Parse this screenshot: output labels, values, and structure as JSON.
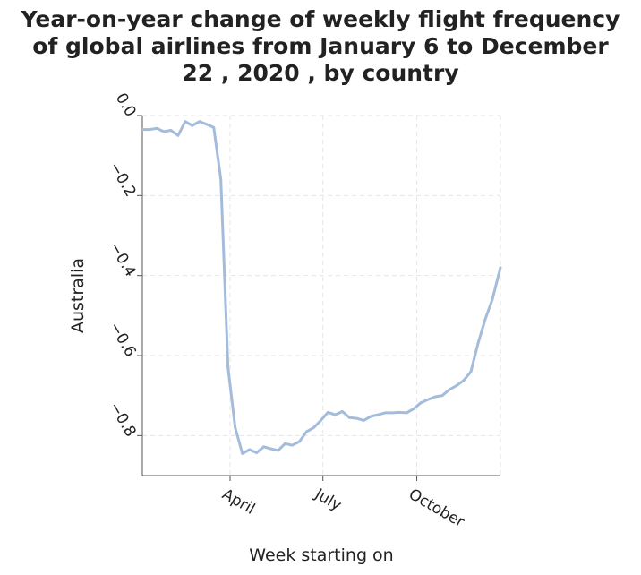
{
  "chart_data": {
    "type": "line",
    "title_lines": [
      "Year-on-year change of weekly flight frequency",
      "of global airlines from January 6 to December",
      "22 , 2020 , by country"
    ],
    "xlabel": "Week starting on",
    "ylabel": "Australia",
    "x_range": [
      "2020-01-06",
      "2020-12-22"
    ],
    "ylim": [
      -0.9,
      0.0
    ],
    "x_ticks": [
      {
        "label": "April",
        "date": "2020-04-01"
      },
      {
        "label": "July",
        "date": "2020-07-01"
      },
      {
        "label": "October",
        "date": "2020-10-01"
      }
    ],
    "y_ticks": [
      {
        "label": "0.0",
        "value": 0.0
      },
      {
        "label": "−0.2",
        "value": -0.2
      },
      {
        "label": "−0.4",
        "value": -0.4
      },
      {
        "label": "−0.6",
        "value": -0.6
      },
      {
        "label": "−0.8",
        "value": -0.8
      }
    ],
    "grid": true,
    "line_color": "#a4bcdc",
    "series": [
      {
        "x": [
          "2020-01-06",
          "2020-01-13",
          "2020-01-20",
          "2020-01-27",
          "2020-02-03",
          "2020-02-10",
          "2020-02-17",
          "2020-02-24",
          "2020-03-02",
          "2020-03-09",
          "2020-03-16",
          "2020-03-23",
          "2020-03-30",
          "2020-04-06",
          "2020-04-13",
          "2020-04-20",
          "2020-04-27",
          "2020-05-04",
          "2020-05-11",
          "2020-05-18",
          "2020-05-25",
          "2020-06-01",
          "2020-06-08",
          "2020-06-15",
          "2020-06-22",
          "2020-06-29",
          "2020-07-06",
          "2020-07-13",
          "2020-07-20",
          "2020-07-27",
          "2020-08-03",
          "2020-08-10",
          "2020-08-17",
          "2020-08-24",
          "2020-08-31",
          "2020-09-07",
          "2020-09-14",
          "2020-09-21",
          "2020-09-28",
          "2020-10-05",
          "2020-10-12",
          "2020-10-19",
          "2020-10-26",
          "2020-11-02",
          "2020-11-09",
          "2020-11-16",
          "2020-11-23",
          "2020-11-30",
          "2020-12-07",
          "2020-12-14",
          "2020-12-22"
        ],
        "values": [
          -0.035,
          -0.035,
          -0.032,
          -0.04,
          -0.037,
          -0.05,
          -0.015,
          -0.025,
          -0.015,
          -0.022,
          -0.03,
          -0.16,
          -0.63,
          -0.78,
          -0.845,
          -0.835,
          -0.843,
          -0.828,
          -0.833,
          -0.837,
          -0.82,
          -0.824,
          -0.815,
          -0.79,
          -0.78,
          -0.762,
          -0.742,
          -0.748,
          -0.74,
          -0.755,
          -0.757,
          -0.762,
          -0.752,
          -0.748,
          -0.743,
          -0.743,
          -0.742,
          -0.743,
          -0.733,
          -0.718,
          -0.71,
          -0.703,
          -0.7,
          -0.685,
          -0.675,
          -0.662,
          -0.64,
          -0.57,
          -0.51,
          -0.46,
          -0.38
        ]
      }
    ]
  }
}
